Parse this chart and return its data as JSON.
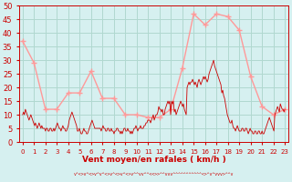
{
  "background_color": "#d6f0f0",
  "grid_color": "#b0d8d0",
  "line_color_mean": "#ff9999",
  "line_color_gust": "#cc0000",
  "xlabel": "Vent moyen/en rafales ( km/h )",
  "xlabel_color": "#cc0000",
  "tick_color": "#cc0000",
  "ylim": [
    0,
    50
  ],
  "mean_wind_y": [
    37,
    29,
    12,
    12,
    18,
    18,
    26,
    16,
    16,
    10,
    10,
    9,
    9,
    12,
    27,
    47,
    43,
    47,
    46,
    41,
    24,
    13,
    10,
    12
  ],
  "mean_wind_x": [
    0,
    1,
    2,
    3,
    4,
    5,
    6,
    7,
    8,
    9,
    10,
    11,
    12,
    13,
    14,
    15,
    16,
    17,
    18,
    19,
    20,
    21,
    22,
    23
  ],
  "gust_y": [
    10,
    11,
    10,
    12,
    11,
    10,
    9,
    8,
    9,
    10,
    9,
    8,
    7,
    6,
    7,
    6,
    5,
    6,
    7,
    6,
    5,
    6,
    5,
    5,
    5,
    4,
    5,
    5,
    4,
    4,
    5,
    5,
    4,
    4,
    5,
    4,
    5,
    6,
    7,
    6,
    5,
    5,
    4,
    5,
    6,
    5,
    5,
    4,
    4,
    5,
    6,
    8,
    9,
    10,
    11,
    10,
    9,
    8,
    7,
    6,
    4,
    4,
    5,
    4,
    3,
    3,
    4,
    5,
    4,
    4,
    3,
    3,
    4,
    5,
    6,
    7,
    8,
    7,
    6,
    5,
    5,
    5,
    5,
    5,
    5,
    5,
    4,
    5,
    6,
    5,
    5,
    4,
    4,
    5,
    5,
    4,
    4,
    5,
    4,
    4,
    3,
    4,
    4,
    5,
    5,
    4,
    4,
    3,
    4,
    3,
    4,
    5,
    5,
    4,
    4,
    5,
    4,
    4,
    3,
    4,
    3,
    4,
    5,
    5,
    6,
    5,
    4,
    5,
    5,
    6,
    5,
    5,
    5,
    6,
    6,
    7,
    7,
    8,
    8,
    8,
    7,
    8,
    9,
    10,
    8,
    9,
    10,
    10,
    11,
    13,
    12,
    12,
    11,
    12,
    10,
    10,
    12,
    13,
    14,
    15,
    14,
    15,
    10,
    15,
    14,
    15,
    11,
    12,
    10,
    11,
    12,
    13,
    14,
    15,
    14,
    13,
    14,
    12,
    11,
    10,
    20,
    21,
    22,
    21,
    22,
    22,
    23,
    22,
    21,
    22,
    21,
    20,
    22,
    23,
    22,
    21,
    22,
    23,
    24,
    23,
    24,
    23,
    22,
    23,
    25,
    26,
    27,
    28,
    29,
    30,
    28,
    27,
    26,
    25,
    24,
    23,
    22,
    21,
    18,
    19,
    17,
    16,
    14,
    12,
    10,
    9,
    8,
    7,
    7,
    8,
    6,
    5,
    5,
    4,
    5,
    6,
    5,
    4,
    4,
    4,
    5,
    5,
    4,
    4,
    5,
    5,
    4,
    3,
    4,
    5,
    4,
    4,
    3,
    3,
    4,
    4,
    3,
    3,
    4,
    4,
    3,
    3,
    4,
    3,
    3,
    4,
    5,
    6,
    7,
    8,
    9,
    8,
    7,
    6,
    5,
    4,
    10,
    11,
    12,
    13,
    12,
    11,
    14,
    13,
    12,
    12,
    11,
    12
  ]
}
